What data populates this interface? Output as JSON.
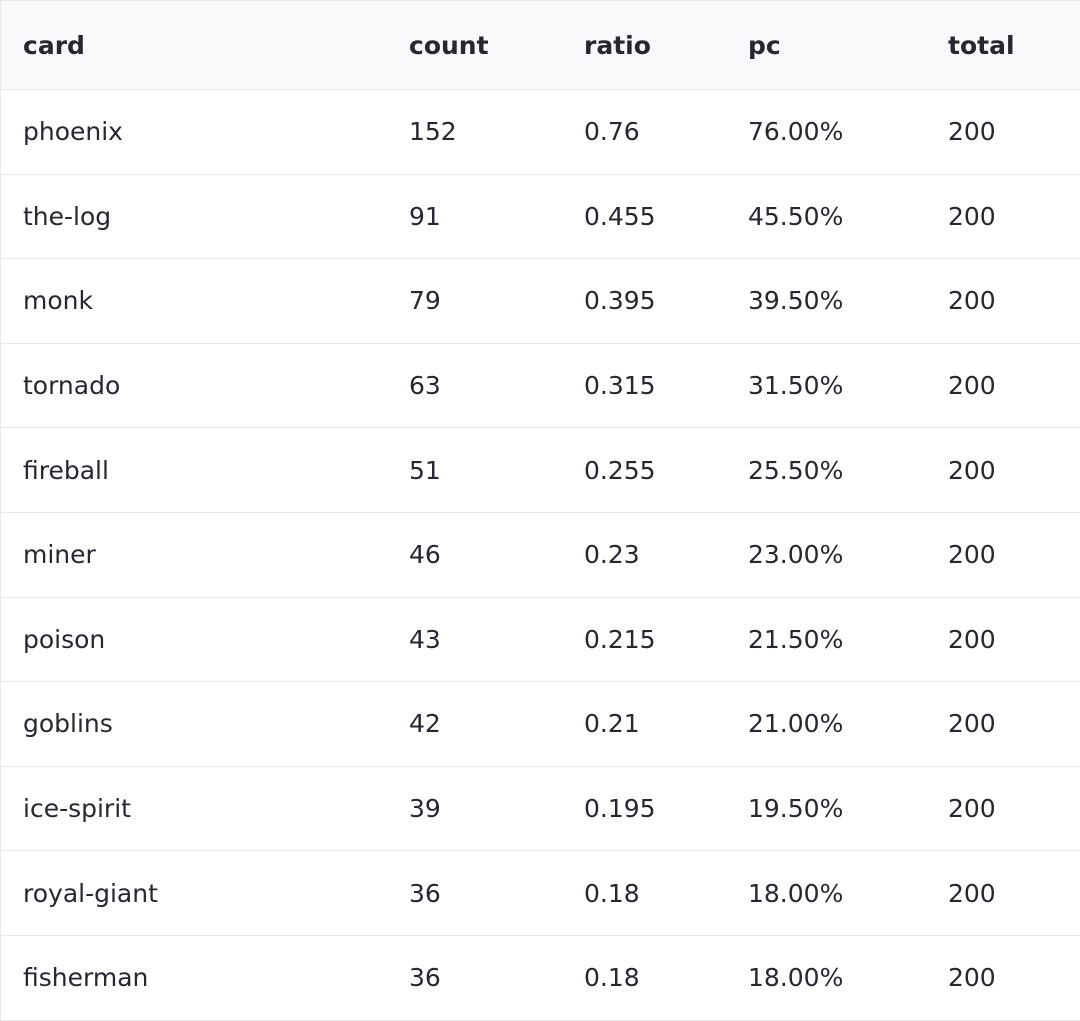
{
  "table": {
    "columns": [
      "card",
      "count",
      "ratio",
      "pc",
      "total"
    ],
    "rows": [
      [
        "phoenix",
        "152",
        "0.76",
        "76.00%",
        "200"
      ],
      [
        "the-log",
        "91",
        "0.455",
        "45.50%",
        "200"
      ],
      [
        "monk",
        "79",
        "0.395",
        "39.50%",
        "200"
      ],
      [
        "tornado",
        "63",
        "0.315",
        "31.50%",
        "200"
      ],
      [
        "fireball",
        "51",
        "0.255",
        "25.50%",
        "200"
      ],
      [
        "miner",
        "46",
        "0.23",
        "23.00%",
        "200"
      ],
      [
        "poison",
        "43",
        "0.215",
        "21.50%",
        "200"
      ],
      [
        "goblins",
        "42",
        "0.21",
        "21.00%",
        "200"
      ],
      [
        "ice-spirit",
        "39",
        "0.195",
        "19.50%",
        "200"
      ],
      [
        "royal-giant",
        "36",
        "0.18",
        "18.00%",
        "200"
      ],
      [
        "fisherman",
        "36",
        "0.18",
        "18.00%",
        "200"
      ]
    ]
  }
}
